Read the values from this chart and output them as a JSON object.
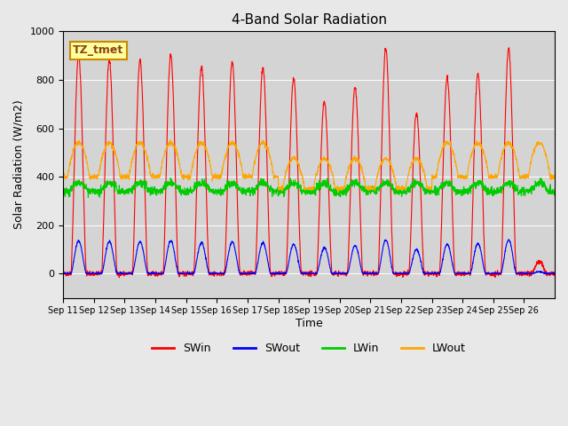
{
  "title": "4-Band Solar Radiation",
  "ylabel": "Solar Radiation (W/m2)",
  "xlabel": "Time",
  "ylim": [
    -100,
    1000
  ],
  "label_box": "TZ_tmet",
  "background_color": "#e8e8e8",
  "plot_bg_color": "#d4d4d4",
  "x_tick_labels": [
    "Sep 11",
    "Sep 12",
    "Sep 13",
    "Sep 14",
    "Sep 15",
    "Sep 16",
    "Sep 17",
    "Sep 18",
    "Sep 19",
    "Sep 20",
    "Sep 21",
    "Sep 22",
    "Sep 23",
    "Sep 24",
    "Sep 25",
    "Sep 26"
  ],
  "colors": {
    "SWin": "#ff0000",
    "SWout": "#0000ff",
    "LWin": "#00cc00",
    "LWout": "#ffa500"
  },
  "legend_labels": [
    "SWin",
    "SWout",
    "LWin",
    "LWout"
  ],
  "SWin_peaks": [
    900,
    880,
    880,
    905,
    855,
    875,
    850,
    805,
    710,
    770,
    930,
    660,
    810,
    825,
    930,
    50
  ],
  "grid_color": "#ffffff",
  "n_days": 16
}
